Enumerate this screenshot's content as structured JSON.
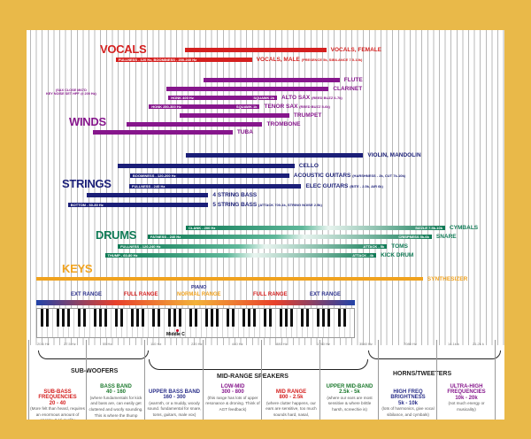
{
  "axis": {
    "scale": "log",
    "ticks": [
      "20.6 Hz",
      "27.5 Hz",
      "55 Hz",
      "110 Hz",
      "220 Hz",
      "440 Hz",
      "880 Hz",
      "1760 Hz",
      "3540 Hz",
      "7080 Hz",
      "14.1k k",
      "21.2k k"
    ]
  },
  "groups": [
    {
      "name": "VOCALS",
      "color": "#d4201f"
    },
    {
      "name": "WINDS",
      "color": "#86168c"
    },
    {
      "name": "STRINGS",
      "color": "#1b1f78"
    },
    {
      "name": "DRUMS",
      "color": "#0f7a55"
    },
    {
      "name": "KEYS",
      "color": "#f0a21e"
    }
  ],
  "instruments": [
    {
      "group": 0,
      "name": "VOCALS, FEMALE",
      "note": "",
      "range_hz": [
        190,
        2000
      ],
      "inner": [
        "",
        ""
      ]
    },
    {
      "group": 0,
      "name": "VOCALS, MALE",
      "note": "(PRESENCE 5k, SIBILANCE 7.5-10k)",
      "range_hz": [
        60,
        580
      ],
      "inner": [
        "FULLNESS - 120 Hz, BOOMINESS - 200-240 Hz",
        ""
      ]
    },
    {
      "group": 1,
      "name": "FLUTE",
      "note": "",
      "range_hz": [
        260,
        2500
      ],
      "inner": [
        "",
        ""
      ]
    },
    {
      "group": 1,
      "name": "CLARINET",
      "note": "",
      "range_hz": [
        140,
        2080
      ],
      "inner": [
        "",
        ""
      ]
    },
    {
      "group": 1,
      "name": "ALTO SAX",
      "note": "(REED BUZZ 6-7k)",
      "range_hz": [
        144,
        880
      ],
      "inner": [
        "HONK 400 Hz",
        "SQUAWK 2k"
      ]
    },
    {
      "group": 1,
      "name": "TENOR SAX",
      "note": "(REED BUZZ 5-6k)",
      "range_hz": [
        104,
        660
      ],
      "inner": [
        "HONK 250-300 Hz",
        "SQUAWK 1k"
      ]
    },
    {
      "group": 1,
      "name": "TRUMPET",
      "note": "",
      "range_hz": [
        173,
        1080
      ],
      "inner": [
        "",
        ""
      ]
    },
    {
      "group": 1,
      "name": "TROMBONE",
      "note": "",
      "range_hz": [
        72,
        690
      ],
      "inner": [
        "",
        ""
      ]
    },
    {
      "group": 1,
      "name": "TUBA",
      "note": "",
      "range_hz": [
        41,
        420
      ],
      "inner": [
        "",
        ""
      ]
    },
    {
      "group": 2,
      "name": "VIOLIN, MANDOLIN",
      "note": "",
      "range_hz": [
        193,
        3700
      ],
      "inner": [
        "",
        ""
      ]
    },
    {
      "group": 2,
      "name": "CELLO",
      "note": "",
      "range_hz": [
        62,
        1180
      ],
      "inner": [
        "",
        ""
      ]
    },
    {
      "group": 2,
      "name": "ACOUSTIC GUITARS",
      "note": "(HARSHNESS - 2k, CUT 7k-10k)",
      "range_hz": [
        76,
        1080
      ],
      "inner": [
        "BOOMINESS - 120-200 Hz",
        ""
      ]
    },
    {
      "group": 2,
      "name": "ELEC GUITARS",
      "note": "(BITE - 2.5k, AIR 6k)",
      "range_hz": [
        75,
        1320
      ],
      "inner": [
        "FULLNESS - 240 Hz",
        ""
      ]
    },
    {
      "group": 2,
      "name": "4 STRING BASS",
      "note": "",
      "range_hz": [
        37,
        280
      ],
      "inner": [
        "",
        ""
      ]
    },
    {
      "group": 2,
      "name": "5 STRING BASS",
      "note": "(ATTACK 700-1k, STRING NOISE 2.5k)",
      "range_hz": [
        27,
        280
      ],
      "inner": [
        "BOTTOM - 60-80 Hz",
        ""
      ]
    },
    {
      "group": 3,
      "name": "CYMBALS",
      "note": "",
      "range_hz": [
        193,
        14500
      ],
      "inner": [
        "CLANK - 200 Hz",
        "SIZZLE 7.5k-10k"
      ]
    },
    {
      "group": 3,
      "name": "SNARE",
      "note": "",
      "range_hz": [
        102,
        11600
      ],
      "inner": [
        "FATNESS - 240 Hz",
        "CRISPNESS 5k-6k"
      ]
    },
    {
      "group": 3,
      "name": "TOMS",
      "note": "",
      "range_hz": [
        62,
        5500
      ],
      "inner": [
        "FULLNESS - 120-240 Hz",
        "ATTACK - 5k"
      ]
    },
    {
      "group": 3,
      "name": "KICK DRUM",
      "note": "",
      "range_hz": [
        50,
        4600
      ],
      "inner": [
        "THUMP - 60-80 Hz",
        "ATTACK - 4k"
      ]
    },
    {
      "group": 4,
      "name": "SYNTHESIZER",
      "note": "",
      "range_hz": [
        16,
        10000
      ],
      "inner": [
        "",
        ""
      ]
    }
  ],
  "sax_note": [
    "(SAX CLOSE MIC'D",
    "KEY NOISE SET HPF @ 200 Hz)"
  ],
  "piano": {
    "title": "PIANO",
    "ranges": [
      "EXT RANGE",
      "FULL RANGE",
      "NORMAL RANGE",
      "FULL RANGE",
      "EXT RANGE"
    ],
    "middle_c": "Middle C"
  },
  "speakers": [
    "SUB-WOOFERS",
    "MID-RANGE SPEAKERS",
    "HORNS/TWEETERS"
  ],
  "bands": [
    {
      "title": "SUB-BASS FREQUENCIES",
      "range": "20 - 40",
      "desc": "(More felt than heard, requires an enormous amount of energy, & Hi quality transducers)",
      "color": "#d4201f"
    },
    {
      "title": "BASS BAND",
      "range": "40 - 160",
      "desc": "(where fundamentals for kick and bass are, can easily get cluttered and woofy sounding. This is where the thump comes from)",
      "color": "#1d7a2e"
    },
    {
      "title": "UPPER BASS BAND",
      "range": "160 - 300",
      "desc": "(warmth, or a muddy, woody sound. fundamental for snare, toms, guitars, male vox)",
      "color": "#2a2f8a"
    },
    {
      "title": "LOW-MID",
      "range": "300 - 800",
      "desc": "(this range has lots of upper resonance & droning. Think of AGT feedback)",
      "color": "#86168c"
    },
    {
      "title": "MID RANGE",
      "range": "800 - 2.5k",
      "desc": "(where clutter happens, our ears are sensitive, too much sounds hard, nasal, obnoxious)",
      "color": "#d4201f"
    },
    {
      "title": "UPPER MID-BAND",
      "range": "2.5k - 5k",
      "desc": "(where our ears are most sensitive & where brittle harsh, screechie is)",
      "color": "#1d7a2e"
    },
    {
      "title": "HIGH FREQ BRIGHTNESS",
      "range": "5k - 10k",
      "desc": "(lots of harmonics, give vocal sibilance, and cymbals)",
      "color": "#2a2f8a"
    },
    {
      "title": "ULTRA-HIGH FREQUENCIES",
      "range": "10k - 20k",
      "desc": "(not much energy or musicality)",
      "color": "#86168c"
    }
  ]
}
